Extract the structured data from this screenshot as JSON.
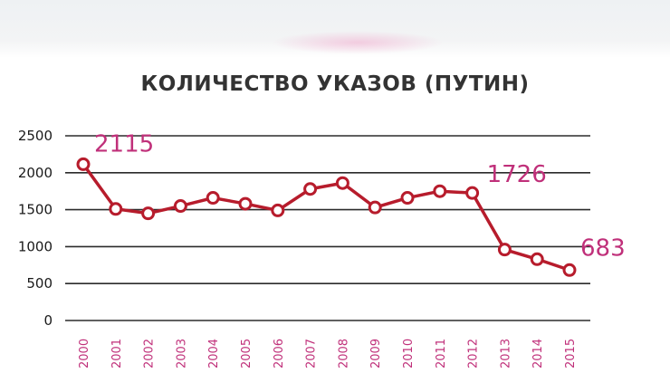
{
  "chart_data": {
    "type": "line",
    "title": "КОЛИЧЕСТВО УКАЗОВ (ПУТИН)",
    "xlabel": "",
    "ylabel": "",
    "ylim": [
      0,
      2500
    ],
    "yticks": [
      "0",
      "500",
      "1000",
      "1500",
      "2000",
      "2500"
    ],
    "grid": true,
    "categories": [
      "2000",
      "2001",
      "2002",
      "2003",
      "2004",
      "2005",
      "2006",
      "2007",
      "2008",
      "2009",
      "2010",
      "2011",
      "2012",
      "2013",
      "2014",
      "2015"
    ],
    "series": [
      {
        "values": [
          2115,
          1510,
          1450,
          1550,
          1660,
          1580,
          1490,
          1780,
          1860,
          1530,
          1660,
          1750,
          1726,
          960,
          830,
          683
        ]
      }
    ],
    "data_labels": [
      {
        "index": 0,
        "text": "2115"
      },
      {
        "index": 12,
        "text": "1726"
      },
      {
        "index": 15,
        "text": "683"
      }
    ],
    "colors": {
      "line": "#b71c2c",
      "marker_fill": "#ffffff",
      "labels": "#c0307a",
      "grid": "#2b2b2b"
    }
  }
}
